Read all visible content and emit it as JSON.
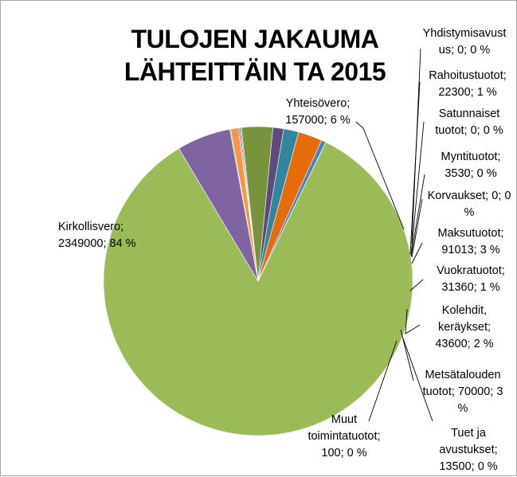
{
  "chart_data": {
    "type": "pie",
    "title_lines": [
      "TULOJEN JAKAUMA",
      "LÄHTEITTÄIN TA 2015"
    ],
    "slices": [
      {
        "name": "Kirkollisvero",
        "value": 2349000,
        "percent": "84 %",
        "color": "#9bbb59",
        "label_lines": [
          "Kirkollisvero;",
          "2349000; 84 %"
        ]
      },
      {
        "name": "Yhteisövero",
        "value": 157000,
        "percent": "6 %",
        "color": "#8064a2",
        "label_lines": [
          "Yhteisövero;",
          "157000; 6 %"
        ]
      },
      {
        "name": "Yhdistymisavustus",
        "value": 0,
        "percent": "0 %",
        "color": "#4bacc6",
        "label_lines": [
          "Yhdistymisavust",
          "us; 0; 0 %"
        ]
      },
      {
        "name": "Rahoitustuotot",
        "value": 22300,
        "percent": "1 %",
        "color": "#f79646",
        "label_lines": [
          "Rahoitustuotot;",
          "22300; 1 %"
        ]
      },
      {
        "name": "Satunnaiset tuotot",
        "value": 0,
        "percent": "0 %",
        "color": "#2c4d75",
        "label_lines": [
          "Satunnaiset",
          "tuotot; 0; 0 %"
        ]
      },
      {
        "name": "Myntituotot",
        "value": 3530,
        "percent": "0 %",
        "color": "#c0504d",
        "label_lines": [
          "Myntituotot;",
          "3530; 0 %"
        ]
      },
      {
        "name": "Korvaukset",
        "value": 0,
        "percent": "0 %",
        "color": "#4f81bd",
        "label_lines": [
          "Korvaukset; 0; 0",
          "%"
        ]
      },
      {
        "name": "Maksutuotot",
        "value": 91013,
        "percent": "3 %",
        "color": "#77933c",
        "label_lines": [
          "Maksutuotot;",
          "91013; 3 %"
        ]
      },
      {
        "name": "Vuokratuotot",
        "value": 31360,
        "percent": "1 %",
        "color": "#604a7b",
        "label_lines": [
          "Vuokratuotot;",
          "31360; 1 %"
        ]
      },
      {
        "name": "Kolehdit, keräykset",
        "value": 43600,
        "percent": "2 %",
        "color": "#31859c",
        "label_lines": [
          "Kolehdit,",
          "keräykset;",
          "43600; 2 %"
        ]
      },
      {
        "name": "Metsätalouden tuotot",
        "value": 70000,
        "percent": "3 %",
        "color": "#e46c0a",
        "label_lines": [
          "Metsätalouden",
          "tuotot; 70000; 3",
          "%"
        ]
      },
      {
        "name": "Tuet ja avustukset",
        "value": 13500,
        "percent": "0 %",
        "color": "#4f81bd",
        "label_lines": [
          "Tuet ja",
          "avustukset;",
          "13500; 0 %"
        ]
      },
      {
        "name": "Muut toimintatuotot",
        "value": 100,
        "percent": "0 %",
        "color": "#c0504d",
        "label_lines": [
          "Muut",
          "toimintatuotot;",
          "100; 0 %"
        ]
      }
    ],
    "legend": "none"
  }
}
